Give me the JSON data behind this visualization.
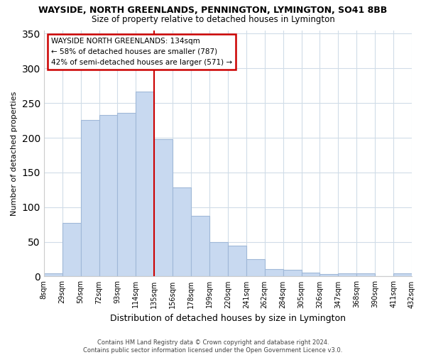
{
  "title": "WAYSIDE, NORTH GREENLANDS, PENNINGTON, LYMINGTON, SO41 8BB",
  "subtitle": "Size of property relative to detached houses in Lymington",
  "xlabel": "Distribution of detached houses by size in Lymington",
  "ylabel": "Number of detached properties",
  "footer_line1": "Contains HM Land Registry data © Crown copyright and database right 2024.",
  "footer_line2": "Contains public sector information licensed under the Open Government Licence v3.0.",
  "bin_labels": [
    "8sqm",
    "29sqm",
    "50sqm",
    "72sqm",
    "93sqm",
    "114sqm",
    "135sqm",
    "156sqm",
    "178sqm",
    "199sqm",
    "220sqm",
    "241sqm",
    "262sqm",
    "284sqm",
    "305sqm",
    "326sqm",
    "347sqm",
    "368sqm",
    "390sqm",
    "411sqm",
    "432sqm"
  ],
  "bar_heights": [
    5,
    77,
    226,
    233,
    236,
    267,
    198,
    128,
    87,
    50,
    44,
    25,
    11,
    10,
    6,
    4,
    5,
    5,
    0,
    5
  ],
  "bar_color": "#c8d9f0",
  "bar_edge_color": "#a0b8d8",
  "highlight_line_color": "#cc0000",
  "highlight_bar_index": 6,
  "annotation_title": "WAYSIDE NORTH GREENLANDS: 134sqm",
  "annotation_line1": "← 58% of detached houses are smaller (787)",
  "annotation_line2": "42% of semi-detached houses are larger (571) →",
  "annotation_box_color": "#ffffff",
  "annotation_box_edge": "#cc0000",
  "ylim": [
    0,
    355
  ],
  "yticks": [
    0,
    50,
    100,
    150,
    200,
    250,
    300,
    350
  ],
  "background_color": "#ffffff",
  "grid_color": "#d0dce8"
}
